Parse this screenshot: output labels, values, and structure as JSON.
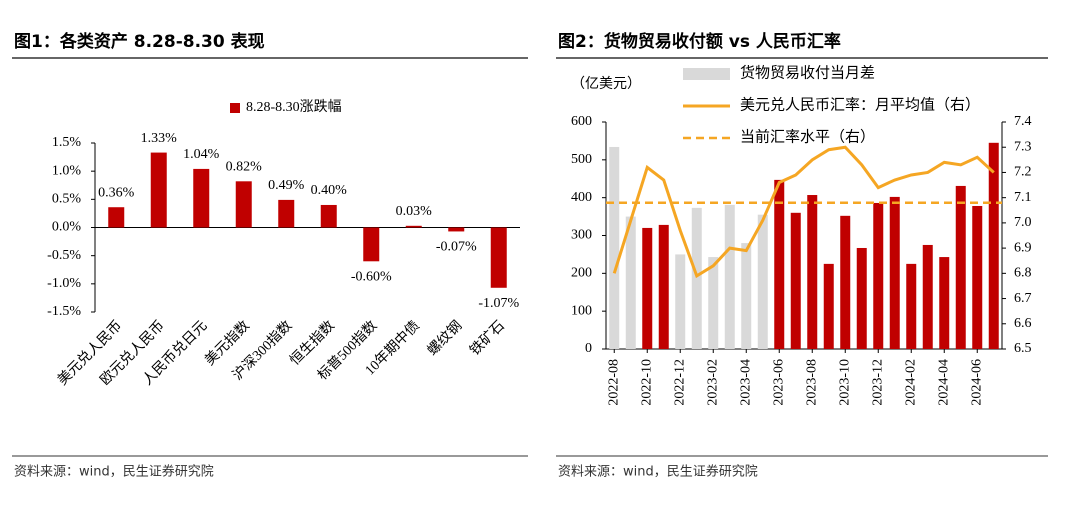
{
  "chart_data": [
    {
      "type": "bar",
      "title": "图1：各类资产 8.28-8.30 表现",
      "source": "资料来源：wind，民生证券研究院",
      "categories": [
        "美元兑人民币",
        "欧元兑人民币",
        "人民币兑日元",
        "美元指数",
        "沪深300指数",
        "恒生指数",
        "标普500指数",
        "10年期中债",
        "螺纹钢",
        "铁矿石"
      ],
      "series": [
        {
          "name": "8.28-8.30涨跌幅",
          "color": "#c00000",
          "values": [
            0.36,
            1.33,
            1.04,
            0.82,
            0.49,
            0.4,
            -0.6,
            0.03,
            -0.07,
            -1.07
          ],
          "value_labels": [
            "0.36%",
            "1.33%",
            "1.04%",
            "0.82%",
            "0.49%",
            "0.40%",
            "-0.60%",
            "0.03%",
            "-0.07%",
            "-1.07%"
          ]
        }
      ],
      "ylim": [
        -1.5,
        1.5
      ],
      "yticks": [
        {
          "value": 1.5,
          "label": "1.5%"
        },
        {
          "value": 1.0,
          "label": "1.0%"
        },
        {
          "value": 0.5,
          "label": "0.5%"
        },
        {
          "value": 0,
          "label": "0.0%"
        },
        {
          "value": -0.5,
          "label": "-0.5%"
        },
        {
          "value": -1.0,
          "label": "-1.0%"
        },
        {
          "value": -1.5,
          "label": "-1.5%"
        }
      ]
    },
    {
      "type": "combo",
      "title": "图2：货物贸易收付额 vs 人民币汇率",
      "source": "资料来源：wind，民生证券研究院",
      "y_label": "（亿美元）",
      "categories": [
        "2022-08",
        null,
        "2022-10",
        null,
        "2022-12",
        null,
        "2023-02",
        null,
        "2023-04",
        null,
        "2023-06",
        null,
        "2023-08",
        null,
        "2023-10",
        null,
        "2023-12",
        null,
        "2024-02",
        null,
        "2024-04",
        null,
        "2024-06",
        null
      ],
      "series": [
        {
          "name": "货物贸易收付当月差",
          "type": "bar",
          "color": "#d9d9d9",
          "colors": [
            "#d9d9d9",
            "#d9d9d9",
            "#c00000",
            "#c00000",
            "#d9d9d9",
            "#d9d9d9",
            "#d9d9d9",
            "#d9d9d9",
            "#d9d9d9",
            "#d9d9d9",
            "#c00000",
            "#c00000",
            "#c00000",
            "#c00000",
            "#c00000",
            "#c00000",
            "#c00000",
            "#c00000",
            "#c00000",
            "#c00000",
            "#c00000",
            "#c00000",
            "#c00000",
            "#c00000"
          ],
          "values": [
            534,
            350,
            320,
            328,
            250,
            373,
            243,
            381,
            280,
            355,
            447,
            360,
            407,
            225,
            352,
            267,
            386,
            402,
            225,
            275,
            243,
            431,
            378,
            545
          ]
        },
        {
          "name": "美元兑人民币汇率：月平均值（右）",
          "type": "line",
          "color": "#f5a623",
          "axis": "y2",
          "values": [
            6.8,
            7.01,
            7.22,
            7.17,
            6.97,
            6.79,
            6.83,
            6.9,
            6.89,
            7.01,
            7.16,
            7.19,
            7.25,
            7.29,
            7.3,
            7.23,
            7.14,
            7.17,
            7.19,
            7.2,
            7.24,
            7.23,
            7.26,
            7.2
          ]
        }
      ],
      "reference_line": {
        "name": "当前汇率水平（右）",
        "color": "#f5a623",
        "value": 7.08,
        "axis": "y2",
        "dashed": true
      },
      "ylim": [
        0,
        600
      ],
      "yticks": [
        0,
        100,
        200,
        300,
        400,
        500,
        600
      ],
      "y2lim": [
        6.5,
        7.4
      ],
      "y2ticks": [
        6.5,
        6.6,
        6.7,
        6.8,
        6.9,
        {
          "value": 7.0,
          "label": "7.0"
        },
        7.1,
        7.2,
        7.3,
        7.4
      ]
    }
  ]
}
